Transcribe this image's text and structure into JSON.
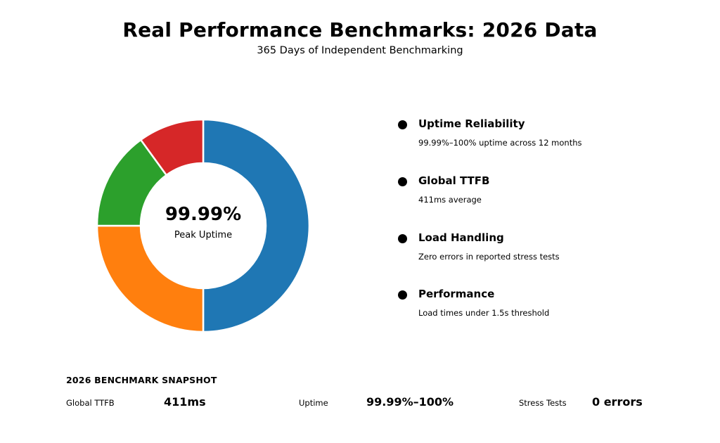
{
  "header": {
    "title": "Real Performance Benchmarks: 2026 Data",
    "subtitle": "365 Days of Independent Benchmarking"
  },
  "donut_center": {
    "value": "99.99%",
    "label": "Peak Uptime"
  },
  "chart_data": {
    "type": "pie",
    "donut": true,
    "slices": [
      {
        "value": 50,
        "color": "#1f77b4"
      },
      {
        "value": 25,
        "color": "#ff7f0e"
      },
      {
        "value": 15,
        "color": "#2ca02c"
      },
      {
        "value": 10,
        "color": "#d62728"
      }
    ],
    "start": "top",
    "direction": "clockwise",
    "edge_color": "#ffffff"
  },
  "metrics": [
    {
      "title": "Uptime Reliability",
      "description": "99.99%–100% uptime across 12 months"
    },
    {
      "title": "Global TTFB",
      "description": "411ms average"
    },
    {
      "title": "Load Handling",
      "description": "Zero errors in reported stress tests"
    },
    {
      "title": "Performance",
      "description": "Load times under 1.5s threshold"
    }
  ],
  "snapshot": {
    "heading": "2026 BENCHMARK SNAPSHOT",
    "items": [
      {
        "label": "Global TTFB",
        "value": "411ms"
      },
      {
        "label": "Uptime",
        "value": "99.99%–100%"
      },
      {
        "label": "Stress Tests",
        "value": "0 errors"
      }
    ]
  }
}
